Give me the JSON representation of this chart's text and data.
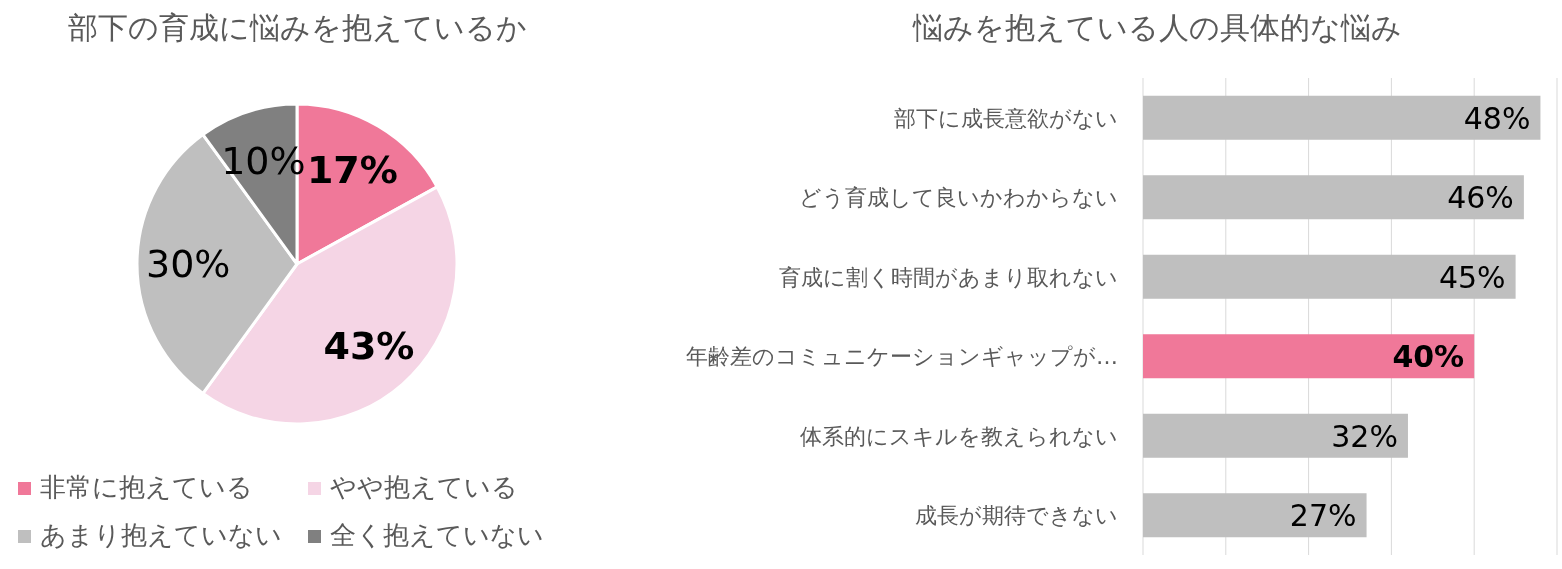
{
  "chart_data": [
    {
      "type": "pie",
      "title": "部下の育成に悩みを抱えているか",
      "categories": [
        "非常に抱えている",
        "やや抱えている",
        "あまり抱えていない",
        "全く抱えていない"
      ],
      "values": [
        17,
        43,
        30,
        10
      ],
      "colors": [
        "#f07899",
        "#f5d5e5",
        "#bfbfbf",
        "#808080"
      ],
      "value_labels": [
        "17%",
        "43%",
        "30%",
        "10%"
      ],
      "legend": "bottom"
    },
    {
      "type": "bar",
      "orientation": "horizontal",
      "title": "悩みを抱えている人の具体的な悩み",
      "categories": [
        "部下に成長意欲がない",
        "どう育成して良いかわからない",
        "育成に割く時間があまり取れない",
        "年齢差のコミュニケーションギャップが…",
        "体系的にスキルを教えられない",
        "成長が期待できない"
      ],
      "values": [
        48,
        46,
        45,
        40,
        32,
        27
      ],
      "colors": [
        "#bfbfbf",
        "#bfbfbf",
        "#bfbfbf",
        "#f07899",
        "#bfbfbf",
        "#bfbfbf"
      ],
      "value_labels": [
        "48%",
        "46%",
        "45%",
        "40%",
        "32%",
        "27%"
      ],
      "xlim": [
        0,
        50
      ],
      "xticks": [
        {
          "value": 0,
          "label": null
        },
        {
          "value": 10,
          "label": null
        },
        {
          "value": 20,
          "label": null
        },
        {
          "value": 30,
          "label": null
        },
        {
          "value": 40,
          "label": null
        },
        {
          "value": 50,
          "label": null
        }
      ],
      "grid": "x",
      "tick_labels": "y"
    }
  ]
}
